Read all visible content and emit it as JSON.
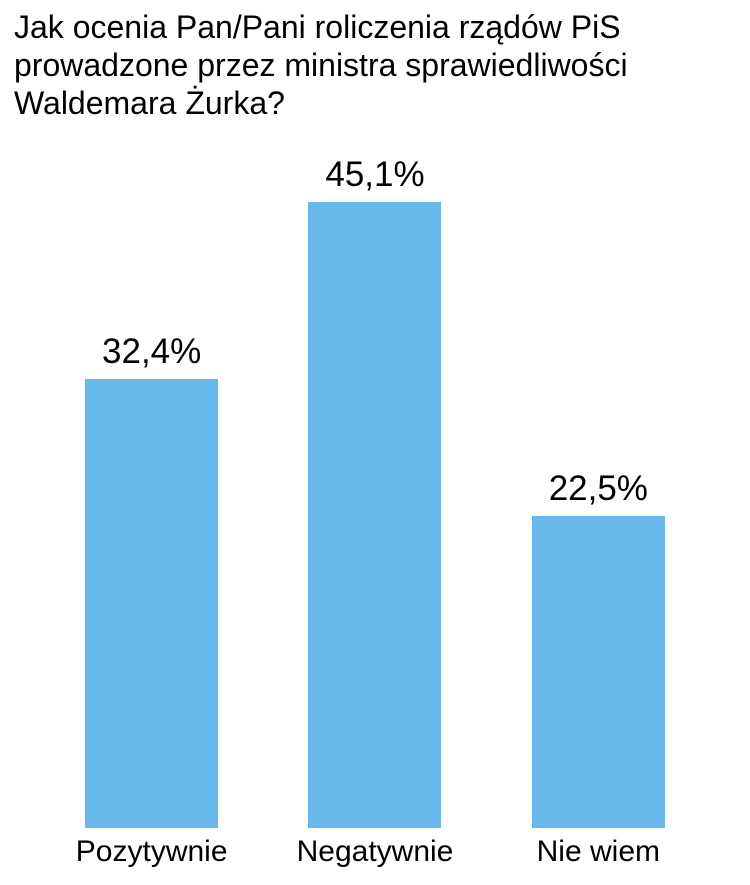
{
  "title": "Jak ocenia Pan/Pani roliczenia rządów PiS prowadzone przez ministra sprawiedliwości Waldemara Żurka?",
  "chart_data": {
    "type": "bar",
    "title": "Jak ocenia Pan/Pani roliczenia rządów PiS prowadzone przez ministra sprawiedliwości Waldemara Żurka?",
    "categories": [
      "Pozytywnie",
      "Negatywnie",
      "Nie wiem"
    ],
    "values": [
      32.4,
      45.1,
      22.5
    ],
    "value_labels": [
      "32,4%",
      "45,1%",
      "22,5%"
    ],
    "xlabel": "",
    "ylabel": "",
    "ylim": [
      0,
      50
    ],
    "grid": false,
    "legend": false,
    "bar_color": "#66b9e8"
  },
  "colors": {
    "bar": "#66b9e8",
    "text": "#000000",
    "background": "#ffffff"
  }
}
